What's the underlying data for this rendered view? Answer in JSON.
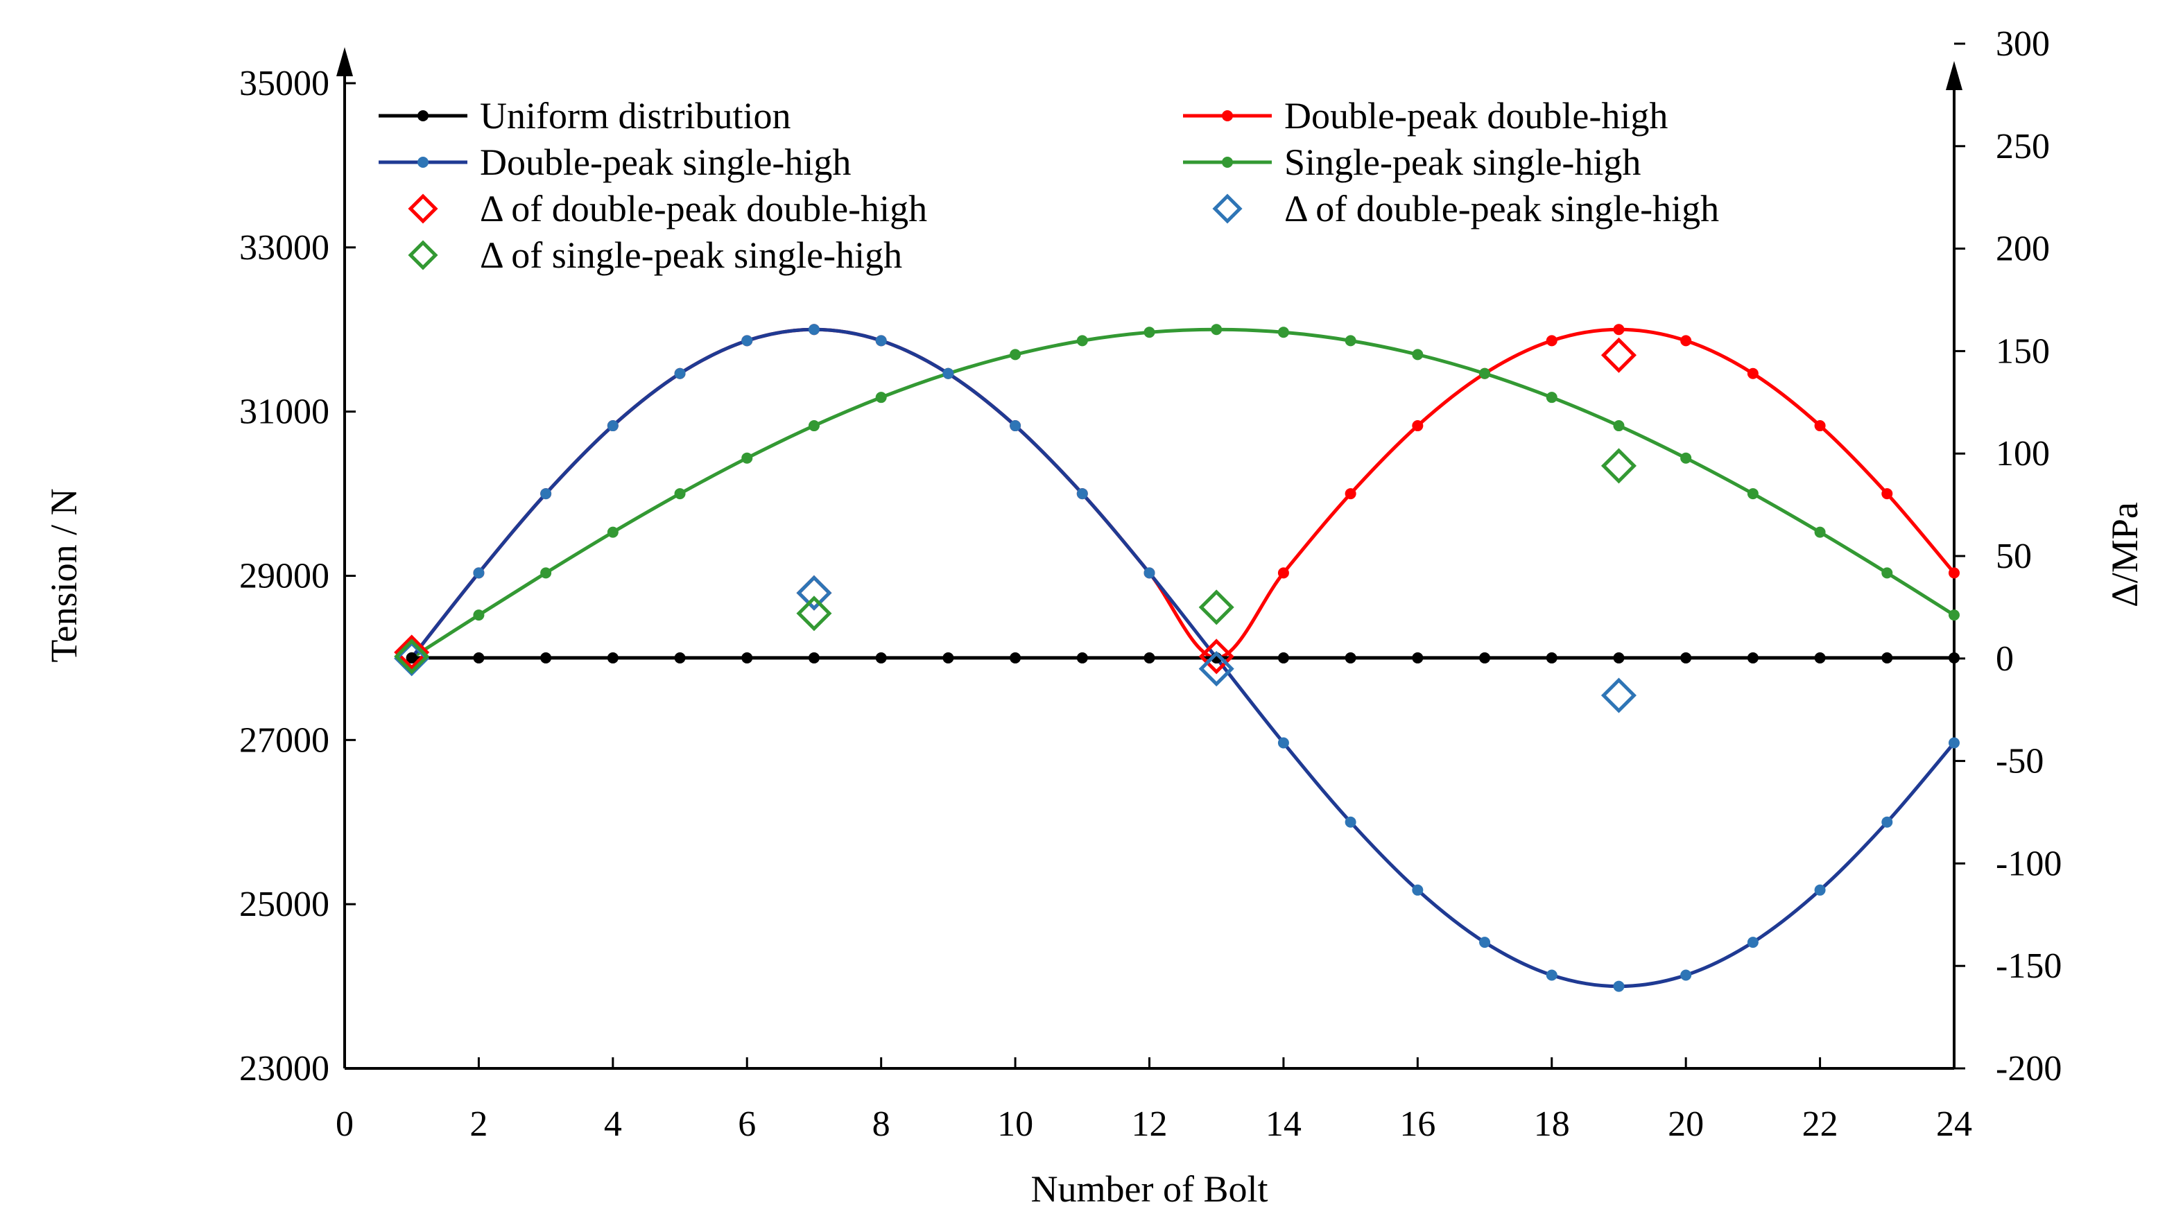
{
  "chart_data": {
    "type": "line",
    "x_label": "Number of Bolt",
    "y_label": "Tension / N",
    "y2_label": "Δ/MPa",
    "x_range": [
      0,
      24
    ],
    "y_range": [
      23000,
      36000
    ],
    "y2_range": [
      -200,
      300
    ],
    "x_ticks": [
      "0",
      "2",
      "4",
      "6",
      "8",
      "10",
      "12",
      "14",
      "16",
      "18",
      "20",
      "22",
      "24"
    ],
    "y_ticks": [
      "23000",
      "25000",
      "27000",
      "29000",
      "31000",
      "33000",
      "35000"
    ],
    "y2_ticks": [
      "-200",
      "-150",
      "-100",
      "-50",
      "0",
      "50",
      "100",
      "150",
      "200",
      "250",
      "300"
    ],
    "x": [
      1,
      2,
      3,
      4,
      5,
      6,
      7,
      8,
      9,
      10,
      11,
      12,
      13,
      14,
      15,
      16,
      17,
      18,
      19,
      20,
      21,
      22,
      23,
      24
    ],
    "series": [
      {
        "name": "Uniform distribution",
        "color": "#000000",
        "values": [
          28000,
          28000,
          28000,
          28000,
          28000,
          28000,
          28000,
          28000,
          28000,
          28000,
          28000,
          28000,
          28000,
          28000,
          28000,
          28000,
          28000,
          28000,
          28000,
          28000,
          28000,
          28000,
          28000,
          28000
        ]
      },
      {
        "name": "Double-peak double-high",
        "color": "#ff0000",
        "values": [
          28000,
          29035,
          30000,
          30828,
          31464,
          31864,
          32000,
          31864,
          31464,
          30828,
          30000,
          29035,
          28000,
          29035,
          30000,
          30828,
          31464,
          31864,
          32000,
          31864,
          31464,
          30828,
          30000,
          29035
        ]
      },
      {
        "name": "Double-peak single-high",
        "color": "#1f3a93",
        "marker_color": "#2e75b6",
        "values": [
          28000,
          29035,
          30000,
          30828,
          31464,
          31864,
          32000,
          31864,
          31464,
          30828,
          30000,
          29035,
          28000,
          26965,
          26000,
          25172,
          24536,
          24136,
          24000,
          24136,
          24536,
          25172,
          26000,
          26965
        ]
      },
      {
        "name": "Single-peak single-high",
        "color": "#339933",
        "values": [
          28000,
          28522,
          29035,
          29531,
          30000,
          30434,
          30828,
          31173,
          31464,
          31695,
          31864,
          31966,
          32000,
          31966,
          31864,
          31695,
          31464,
          31173,
          30828,
          30434,
          30000,
          29531,
          29035,
          28522
        ]
      }
    ],
    "delta_series": [
      {
        "name": "Δ of double-peak double-high",
        "color": "#ff0000",
        "x": [
          1,
          7,
          13,
          19
        ],
        "values": [
          3,
          32,
          1,
          148
        ]
      },
      {
        "name": "Δ of double-peak single-high",
        "color": "#2e75b6",
        "x": [
          1,
          7,
          13,
          19
        ],
        "values": [
          0,
          32,
          -5,
          -18
        ]
      },
      {
        "name": "Δ of single-peak single-high",
        "color": "#339933",
        "x": [
          1,
          7,
          13,
          19
        ],
        "values": [
          1,
          22,
          25,
          94
        ]
      }
    ],
    "legend": [
      {
        "label": "Uniform distribution",
        "kind": "line",
        "color": "#000000"
      },
      {
        "label": "Double-peak double-high",
        "kind": "line",
        "color": "#ff0000"
      },
      {
        "label": "Double-peak single-high",
        "kind": "line",
        "color": "#1f3a93",
        "marker_color": "#2e75b6"
      },
      {
        "label": "Single-peak single-high",
        "kind": "line",
        "color": "#339933"
      },
      {
        "label": "Δ of double-peak double-high",
        "kind": "diamond",
        "color": "#ff0000"
      },
      {
        "label": "Δ of double-peak single-high",
        "kind": "diamond",
        "color": "#2e75b6"
      },
      {
        "label": "Δ of single-peak single-high",
        "kind": "diamond",
        "color": "#339933"
      }
    ],
    "legend_placement": "top, inside plot area"
  }
}
